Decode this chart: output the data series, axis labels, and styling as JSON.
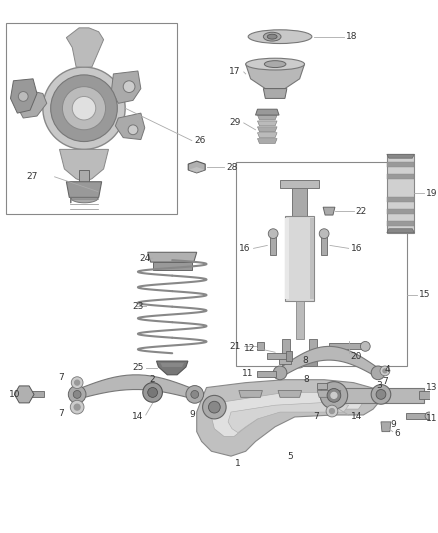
{
  "background_color": "#ffffff",
  "line_color": "#555555",
  "text_color": "#333333",
  "fig_width": 4.38,
  "fig_height": 5.33,
  "dpi": 100
}
